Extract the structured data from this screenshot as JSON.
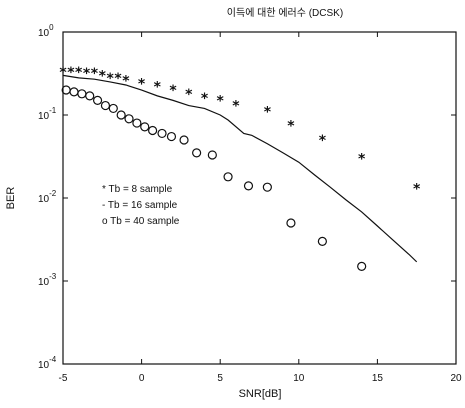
{
  "chart_data": {
    "type": "scatter",
    "title": "이득에 대한 에러수 (DCSK)",
    "xlabel": "SNR[dB]",
    "ylabel": "BER",
    "xlim": [
      -5,
      20
    ],
    "ylim": [
      0.0001,
      1
    ],
    "y_scale": "log",
    "x_ticks": [
      -5,
      0,
      5,
      10,
      15,
      20
    ],
    "x_tick_labels": [
      "-5",
      "0",
      "5",
      "10",
      "15",
      "20"
    ],
    "y_ticks": [
      0.0001,
      0.001,
      0.01,
      0.1,
      1
    ],
    "y_tick_labels": [
      {
        "base": "10",
        "exp": "-4"
      },
      {
        "base": "10",
        "exp": "-3"
      },
      {
        "base": "10",
        "exp": "-2"
      },
      {
        "base": "10",
        "exp": "-1"
      },
      {
        "base": "10",
        "exp": "0"
      }
    ],
    "grid": false,
    "legend": {
      "position": "left",
      "entries": [
        "* Tb =  8 sample",
        "- Tb = 16 sample",
        "o Tb = 40 sample"
      ]
    },
    "series": [
      {
        "marker": "star",
        "style": "markers",
        "x": [
          -5,
          -4.5,
          -4,
          -3.5,
          -3,
          -2.5,
          -2,
          -1.5,
          -1,
          0,
          1,
          2,
          3,
          4,
          5,
          6,
          8,
          9.5,
          11.5,
          14,
          17.5
        ],
        "y": [
          0.33,
          0.33,
          0.33,
          0.32,
          0.32,
          0.3,
          0.28,
          0.28,
          0.26,
          0.24,
          0.22,
          0.2,
          0.18,
          0.16,
          0.15,
          0.13,
          0.11,
          0.075,
          0.05,
          0.03,
          0.013
        ]
      },
      {
        "marker": "none",
        "style": "line",
        "x": [
          -5,
          -4,
          -3,
          -2,
          -1,
          0,
          1,
          2,
          3,
          4,
          5,
          5.5,
          6.5,
          7,
          8,
          9,
          10,
          11,
          12,
          13,
          14,
          15,
          16,
          17,
          17.5
        ],
        "y": [
          0.3,
          0.28,
          0.27,
          0.25,
          0.23,
          0.2,
          0.17,
          0.15,
          0.13,
          0.12,
          0.1,
          0.087,
          0.06,
          0.057,
          0.045,
          0.035,
          0.027,
          0.019,
          0.0135,
          0.0095,
          0.0068,
          0.0046,
          0.0031,
          0.0021,
          0.0017
        ]
      },
      {
        "marker": "circle",
        "style": "markers",
        "x": [
          -4.8,
          -4.3,
          -3.8,
          -3.3,
          -2.8,
          -2.3,
          -1.8,
          -1.3,
          -0.8,
          -0.3,
          0.2,
          0.7,
          1.3,
          1.9,
          2.7,
          3.5,
          4.5,
          5.5,
          6.8,
          8,
          9.5,
          11.5,
          14
        ],
        "y": [
          0.2,
          0.19,
          0.18,
          0.17,
          0.15,
          0.13,
          0.12,
          0.1,
          0.09,
          0.08,
          0.072,
          0.065,
          0.06,
          0.055,
          0.05,
          0.035,
          0.033,
          0.018,
          0.014,
          0.0135,
          0.005,
          0.003,
          0.0015
        ]
      }
    ]
  }
}
